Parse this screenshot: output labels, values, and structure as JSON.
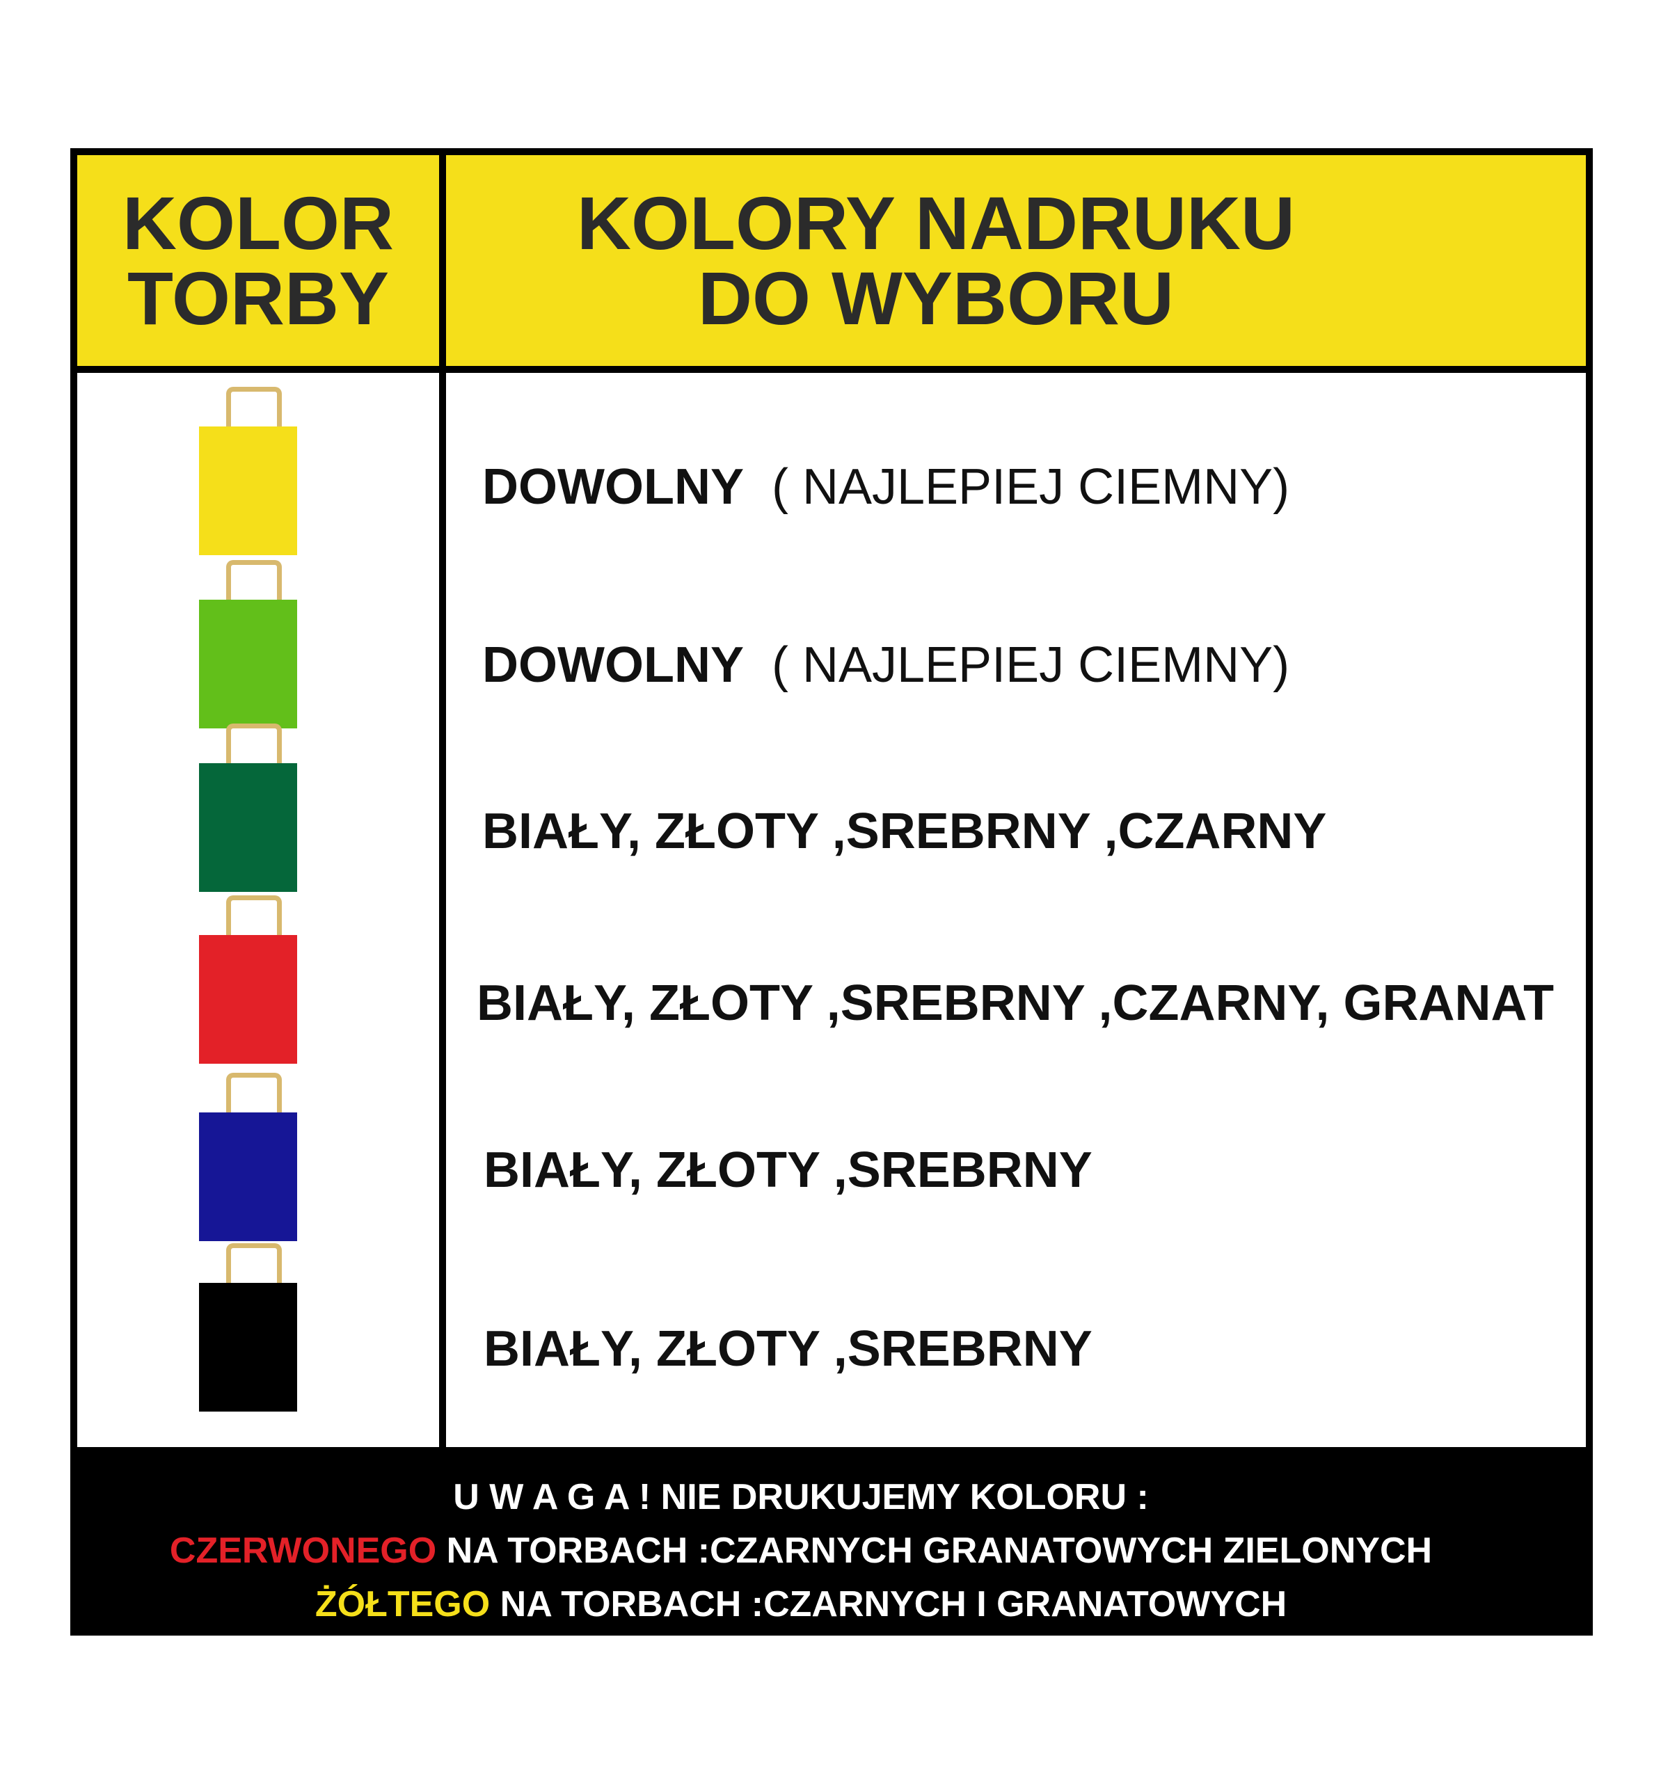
{
  "header": {
    "left_lines": [
      "KOLOR",
      "TORBY"
    ],
    "right_lines": [
      "KOLORY NADRUKU",
      "DO WYBORU"
    ]
  },
  "colors": {
    "header_bg": "#f5df1a",
    "handle": "#d8b96e",
    "warning_red": "#e32128",
    "warning_yellow": "#f5df1a"
  },
  "rows": [
    {
      "bag_color": "#f5df1a",
      "bold": "DOWOLNY",
      "normal": "  ( NAJLEPIEJ CIEMNY)"
    },
    {
      "bag_color": "#62bf1a",
      "bold": "DOWOLNY",
      "normal": "  ( NAJLEPIEJ CIEMNY)"
    },
    {
      "bag_color": "#05673a",
      "bold": "BIAŁY, ZŁOTY ,SREBRNY ,CZARNY",
      "normal": ""
    },
    {
      "bag_color": "#e32128",
      "bold": "BIAŁY, ZŁOTY ,SREBRNY ,CZARNY, GRANAT",
      "normal": ""
    },
    {
      "bag_color": "#161696",
      "bold": "BIAŁY, ZŁOTY ,SREBRNY",
      "normal": ""
    },
    {
      "bag_color": "#000000",
      "bold": "BIAŁY, ZŁOTY ,SREBRNY",
      "normal": ""
    }
  ],
  "footer": {
    "line1": "U W A G A ! NIE DRUKUJEMY KOLORU :",
    "line2_highlight": "CZERWONEGO",
    "line2_rest": " NA TORBACH :CZARNYCH GRANATOWYCH ZIELONYCH",
    "line3_highlight": "ŻÓŁTEGO",
    "line3_rest": " NA TORBACH :CZARNYCH I GRANATOWYCH"
  }
}
